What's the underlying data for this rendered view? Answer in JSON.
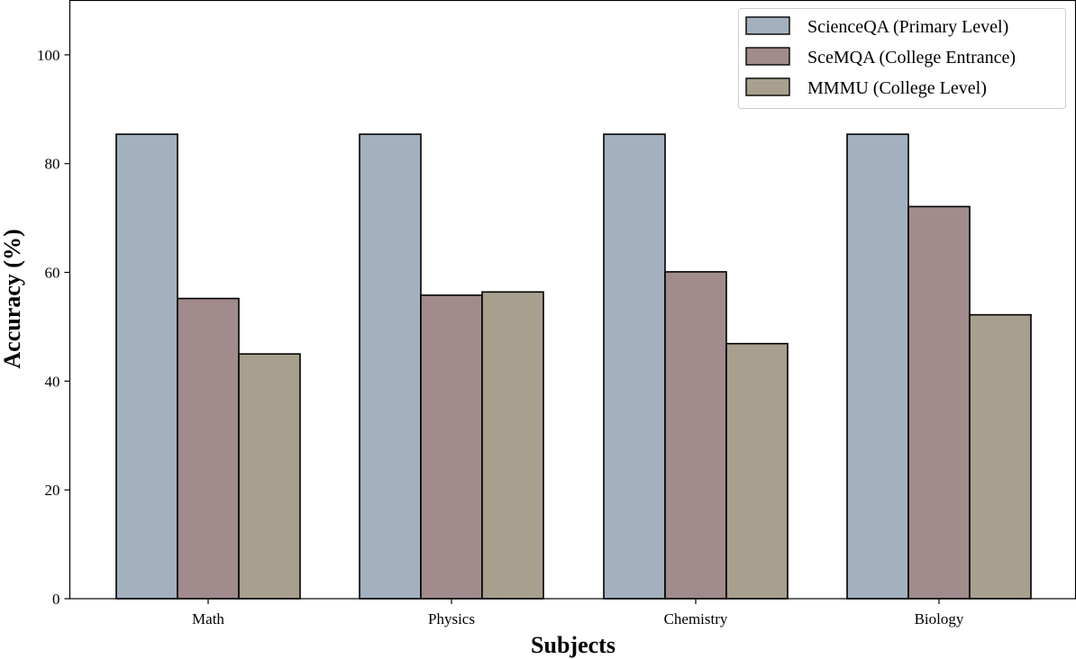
{
  "chart_data": {
    "type": "bar",
    "title": "",
    "xlabel": "Subjects",
    "ylabel": "Accuracy (%)",
    "ylim": [
      0,
      110
    ],
    "yticks": [
      0,
      20,
      40,
      60,
      80,
      100
    ],
    "grid": false,
    "legend_position": "top-right",
    "categories": [
      "Math",
      "Physics",
      "Chemistry",
      "Biology"
    ],
    "series": [
      {
        "name": "ScienceQA (Primary Level)",
        "color": "#a3b1bf",
        "values": [
          85.4,
          85.4,
          85.4,
          85.4
        ]
      },
      {
        "name": "SceMQA (College Entrance)",
        "color": "#a28b8c",
        "values": [
          55.2,
          55.8,
          60.1,
          72.1
        ]
      },
      {
        "name": "MMMU (College Level)",
        "color": "#a89f8e",
        "values": [
          45.0,
          56.4,
          46.9,
          52.2
        ]
      }
    ]
  }
}
